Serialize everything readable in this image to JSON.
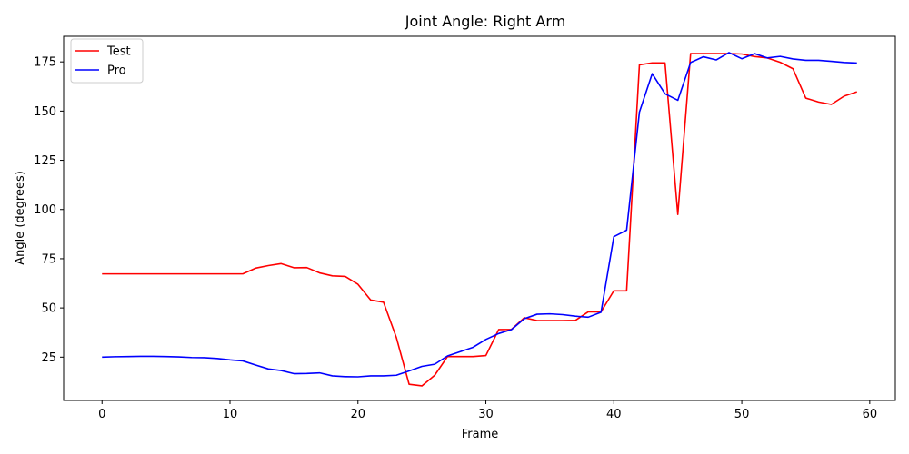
{
  "chart_data": {
    "type": "line",
    "title": "Joint Angle: Right Arm",
    "xlabel": "Frame",
    "ylabel": "Angle (degrees)",
    "xlim": [
      -3,
      62
    ],
    "ylim": [
      3,
      188
    ],
    "xticks": [
      0,
      10,
      20,
      30,
      40,
      50,
      60
    ],
    "yticks": [
      25,
      50,
      75,
      100,
      125,
      150,
      175
    ],
    "grid": false,
    "legend_position": "top-left",
    "x": [
      0,
      1,
      2,
      3,
      4,
      5,
      6,
      7,
      8,
      9,
      10,
      11,
      12,
      13,
      14,
      15,
      16,
      17,
      18,
      19,
      20,
      21,
      22,
      23,
      24,
      25,
      26,
      27,
      28,
      29,
      30,
      31,
      32,
      33,
      34,
      35,
      36,
      37,
      38,
      39,
      40,
      41,
      42,
      43,
      44,
      45,
      46,
      47,
      48,
      49,
      50,
      51,
      52,
      53,
      54,
      55,
      56,
      57,
      58,
      59
    ],
    "series": [
      {
        "name": "Test",
        "color": "#ff0000",
        "values": [
          67.3,
          67.3,
          67.3,
          67.3,
          67.3,
          67.3,
          67.3,
          67.3,
          67.3,
          67.3,
          67.3,
          67.3,
          70.2,
          71.5,
          72.5,
          70.4,
          70.5,
          67.8,
          66.3,
          66.0,
          62.0,
          54.0,
          52.9,
          35.0,
          11.2,
          10.4,
          15.8,
          25.3,
          25.3,
          25.3,
          25.8,
          39.0,
          39.1,
          45.0,
          43.6,
          43.6,
          43.6,
          43.7,
          48.0,
          48.0,
          58.7,
          58.7,
          173.5,
          174.5,
          174.5,
          97.5,
          179.2,
          179.2,
          179.2,
          179.2,
          179.0,
          177.7,
          177.0,
          174.8,
          171.5,
          156.6,
          154.6,
          153.4,
          157.6,
          159.8
        ]
      },
      {
        "name": "Pro",
        "color": "#0000ff",
        "values": [
          25.0,
          25.2,
          25.3,
          25.4,
          25.4,
          25.3,
          25.1,
          24.8,
          24.7,
          24.3,
          23.6,
          23.1,
          21.0,
          19.0,
          18.2,
          16.6,
          16.7,
          17.0,
          15.5,
          15.1,
          15.0,
          15.5,
          15.5,
          15.8,
          18.0,
          20.3,
          21.4,
          25.6,
          27.8,
          30.0,
          34.0,
          37.0,
          39.0,
          44.5,
          46.8,
          47.0,
          46.6,
          45.8,
          45.3,
          47.8,
          86.2,
          89.5,
          149.5,
          169.0,
          158.8,
          155.5,
          174.7,
          177.6,
          176.0,
          179.7,
          176.6,
          179.2,
          177.0,
          177.8,
          176.5,
          175.8,
          175.8,
          175.3,
          174.7,
          174.4
        ]
      }
    ]
  }
}
